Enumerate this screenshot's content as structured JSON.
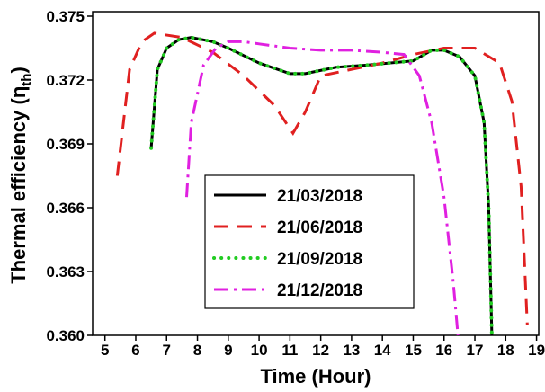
{
  "chart_data": {
    "type": "line",
    "x_label": "Time (Hour)",
    "y_label": {
      "main": "Thermal efficiency (η",
      "sub": "th",
      "end": ")"
    },
    "xlim": [
      4.6,
      19.1
    ],
    "xticks": [
      5,
      6,
      7,
      8,
      9,
      10,
      11,
      12,
      13,
      14,
      15,
      16,
      17,
      18,
      19
    ],
    "ylim": [
      0.36,
      0.375
    ],
    "yticks": [
      {
        "value": 0.36,
        "label": "0.360"
      },
      0.363,
      0.366,
      0.369,
      0.372,
      0.375
    ],
    "legend": "center",
    "series": [
      {
        "name": "21/03/2018",
        "color": "#000000",
        "dash": "solid",
        "x": [
          6.5,
          6.7,
          7.0,
          7.4,
          7.8,
          8.5,
          9.0,
          10.0,
          11.0,
          11.5,
          12.5,
          13.5,
          15.0,
          15.6,
          16.0,
          16.5,
          17.0,
          17.3,
          17.45,
          17.55
        ],
        "values": [
          0.3688,
          0.3725,
          0.3735,
          0.3739,
          0.374,
          0.3738,
          0.3735,
          0.3728,
          0.3723,
          0.3723,
          0.3726,
          0.3727,
          0.3729,
          0.3734,
          0.3734,
          0.3731,
          0.3722,
          0.37,
          0.366,
          0.36
        ]
      },
      {
        "name": "21/06/2018",
        "color": "#e02020",
        "dash": "dash",
        "x": [
          5.4,
          5.8,
          6.2,
          6.6,
          7.5,
          8.5,
          9.5,
          10.5,
          11.1,
          11.5,
          12.0,
          13.0,
          14.0,
          15.0,
          16.0,
          17.0,
          17.8,
          18.2,
          18.5,
          18.7
        ],
        "values": [
          0.3675,
          0.3725,
          0.3738,
          0.3742,
          0.374,
          0.3733,
          0.3722,
          0.3708,
          0.3695,
          0.3705,
          0.3722,
          0.3725,
          0.3728,
          0.3732,
          0.3735,
          0.3735,
          0.3728,
          0.371,
          0.367,
          0.3605
        ]
      },
      {
        "name": "21/09/2018",
        "color": "#22cc22",
        "dash": "dot",
        "x": [
          6.5,
          6.7,
          7.0,
          7.4,
          7.8,
          8.5,
          9.0,
          10.0,
          11.0,
          11.5,
          12.5,
          13.5,
          15.0,
          15.6,
          16.0,
          16.5,
          17.0,
          17.3,
          17.45,
          17.55
        ],
        "values": [
          0.3688,
          0.3725,
          0.3735,
          0.3739,
          0.374,
          0.3738,
          0.3735,
          0.3728,
          0.3723,
          0.3723,
          0.3726,
          0.3727,
          0.3729,
          0.3734,
          0.3734,
          0.3731,
          0.3722,
          0.37,
          0.366,
          0.36
        ]
      },
      {
        "name": "21/12/2018",
        "color": "#e020e0",
        "dash": "dashdot",
        "x": [
          7.65,
          7.8,
          8.2,
          8.6,
          9.0,
          9.5,
          10.0,
          11.0,
          12.0,
          13.0,
          14.0,
          14.7,
          15.2,
          15.6,
          16.0,
          16.3,
          16.45
        ],
        "values": [
          0.3665,
          0.37,
          0.3727,
          0.3735,
          0.3738,
          0.3738,
          0.3737,
          0.3735,
          0.3734,
          0.3734,
          0.3733,
          0.3732,
          0.3722,
          0.37,
          0.3665,
          0.3625,
          0.36
        ]
      }
    ]
  }
}
